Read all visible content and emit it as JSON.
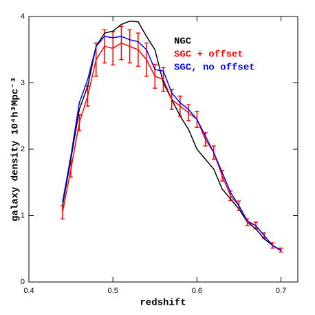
{
  "chart_data": {
    "type": "line",
    "xlabel": "redshift",
    "ylabel": "galaxy density  10⁴h³Mpc⁻³",
    "x": [
      0.44,
      0.45,
      0.46,
      0.47,
      0.48,
      0.49,
      0.5,
      0.51,
      0.52,
      0.53,
      0.54,
      0.55,
      0.56,
      0.57,
      0.58,
      0.59,
      0.6,
      0.61,
      0.62,
      0.63,
      0.64,
      0.65,
      0.66,
      0.67,
      0.68,
      0.69,
      0.7
    ],
    "series": [
      {
        "name": "NGC",
        "color": "#000000",
        "values": [
          1.15,
          1.85,
          2.6,
          2.95,
          3.55,
          3.75,
          3.78,
          3.88,
          3.93,
          3.92,
          3.7,
          3.5,
          3.0,
          2.75,
          2.5,
          2.3,
          2.0,
          1.85,
          1.7,
          1.4,
          1.25,
          1.1,
          0.9,
          0.8,
          0.65,
          0.55,
          0.47
        ]
      },
      {
        "name": "SGC + offset",
        "color": "#ff0000",
        "values": [
          1.05,
          1.7,
          2.4,
          2.8,
          3.35,
          3.55,
          3.52,
          3.6,
          3.55,
          3.5,
          3.35,
          3.1,
          3.05,
          2.75,
          2.65,
          2.55,
          2.45,
          2.15,
          1.95,
          1.6,
          1.3,
          1.15,
          0.9,
          0.85,
          0.7,
          0.55,
          0.48
        ],
        "errors": [
          0.1,
          0.12,
          0.12,
          0.15,
          0.25,
          0.25,
          0.25,
          0.25,
          0.25,
          0.25,
          0.25,
          0.18,
          0.18,
          0.15,
          0.15,
          0.12,
          0.12,
          0.1,
          0.1,
          0.08,
          0.07,
          0.07,
          0.05,
          0.05,
          0.04,
          0.04,
          0.03
        ]
      },
      {
        "name": "SGC, no offset",
        "color": "#0000ff",
        "values": [
          1.2,
          1.9,
          2.7,
          3.05,
          3.55,
          3.7,
          3.68,
          3.7,
          3.65,
          3.62,
          3.5,
          3.2,
          3.18,
          2.85,
          2.7,
          2.6,
          2.45,
          2.2,
          1.95,
          1.65,
          1.35,
          1.15,
          0.92,
          0.85,
          0.7,
          0.55,
          0.48
        ]
      }
    ],
    "xlim": [
      0.4,
      0.72
    ],
    "xticks": [
      0.4,
      0.5,
      0.6,
      0.7
    ],
    "ylim": [
      0,
      4
    ],
    "yticks": [
      0,
      1,
      2,
      3,
      4
    ],
    "legend": "top-right"
  }
}
